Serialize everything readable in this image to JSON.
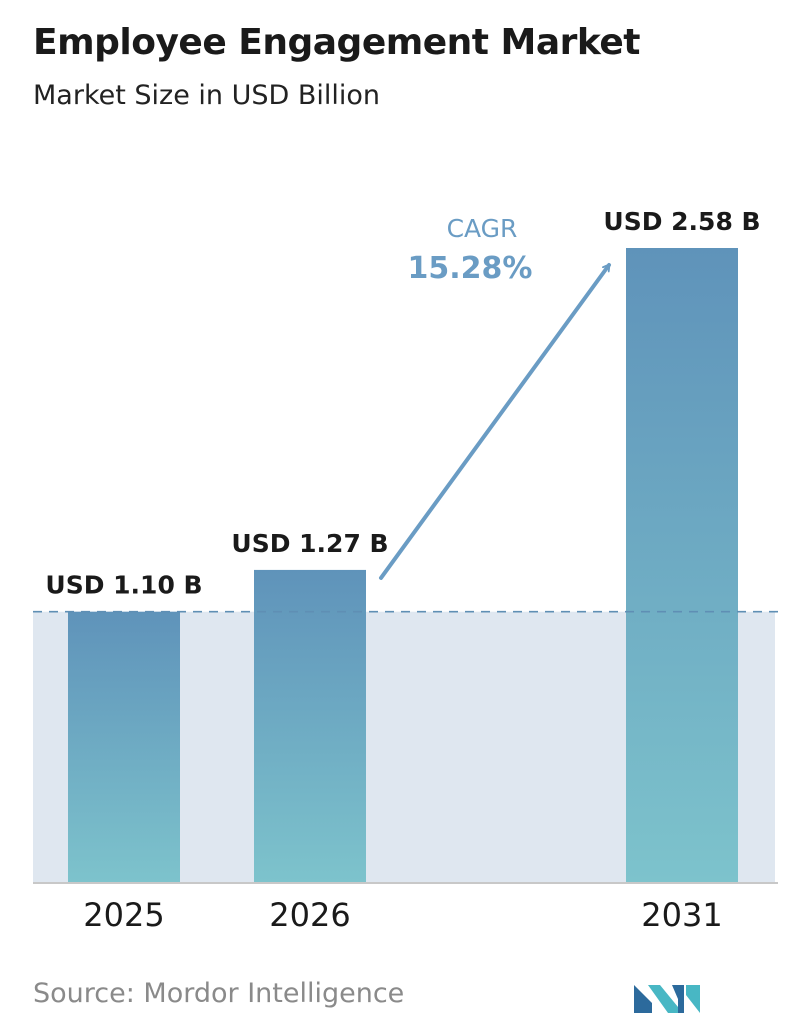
{
  "header": {
    "title": "Employee Engagement Market",
    "subtitle": "Market Size in USD Billion"
  },
  "source": {
    "text": "Source:  Mordor Intelligence"
  },
  "colors": {
    "bar_top": "#5f93ba",
    "bar_bottom": "#7dc3cc",
    "band": "#dfe7f0",
    "arrow": "#6a9cc4",
    "dashed_line": "#5f8fb4",
    "axis": "#c8c8c8",
    "logo_dark": "#2c6a9c",
    "logo_light": "#48b7c4"
  },
  "chart_data": {
    "type": "bar",
    "title": "Employee Engagement Market",
    "subtitle": "Market Size in USD Billion",
    "categories": [
      "2025",
      "2026",
      "2031"
    ],
    "values": [
      1.1,
      1.27,
      2.58
    ],
    "data_labels": [
      "USD 1.10 B",
      "USD 1.27 B",
      "USD 2.58 B"
    ],
    "ylim": [
      0,
      2.58
    ],
    "grid": false,
    "annotation": {
      "label": "CAGR",
      "value": "15.28%"
    }
  }
}
